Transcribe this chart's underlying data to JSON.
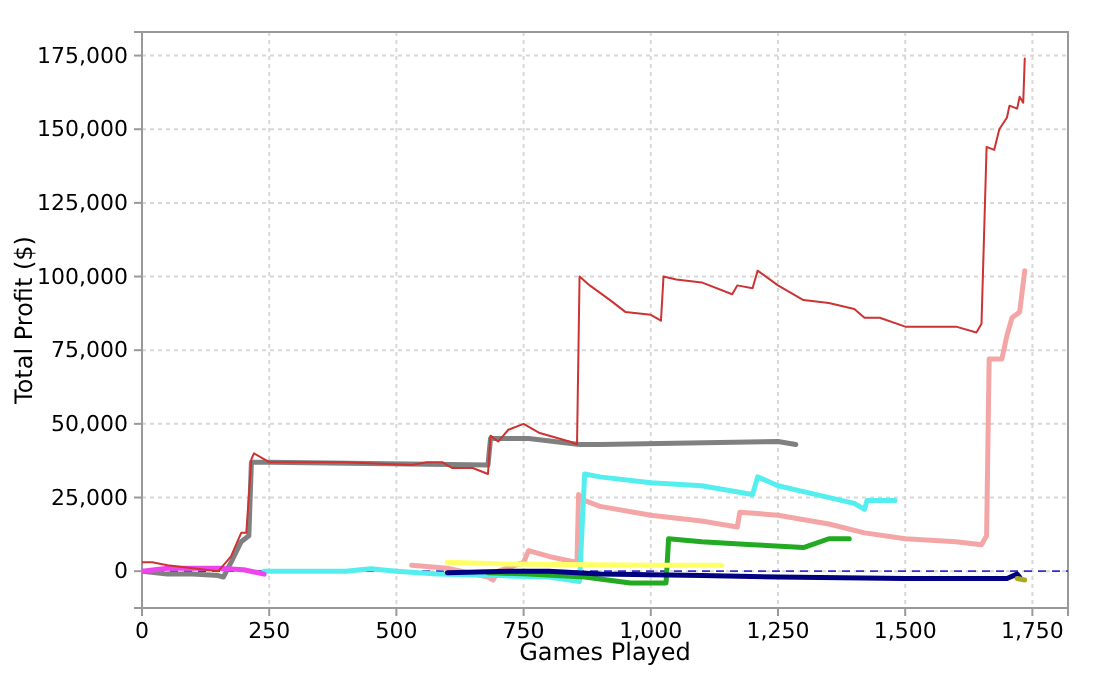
{
  "chart_data": {
    "type": "line",
    "xlabel": "Games Played",
    "ylabel": "Total Profit ($)",
    "xlim": [
      0,
      1820
    ],
    "xticks": [
      0,
      250,
      500,
      750,
      {
        "value": 1000,
        "label": "1,000"
      },
      {
        "value": 1250,
        "label": "1,250"
      },
      {
        "value": 1500,
        "label": "1,500"
      },
      {
        "value": 1750,
        "label": "1,750"
      }
    ],
    "ylim": [
      -12500,
      183000
    ],
    "yticks": [
      0,
      {
        "value": 25000,
        "label": "25,000"
      },
      {
        "value": 50000,
        "label": "50,000"
      },
      {
        "value": 75000,
        "label": "75,000"
      },
      {
        "value": 100000,
        "label": "100,000"
      },
      {
        "value": 125000,
        "label": "125,000"
      },
      {
        "value": 150000,
        "label": "150,000"
      },
      {
        "value": 175000,
        "label": "175,000"
      }
    ],
    "grid": true,
    "line_style": "solid",
    "marker": "none",
    "ref_lines": [
      {
        "axis": "y",
        "value": 0,
        "color": "#3333cc",
        "line_style": "dashed"
      }
    ],
    "series": [
      {
        "color": "#808080",
        "x": [
          0,
          50,
          100,
          150,
          160,
          175,
          195,
          210,
          215,
          250,
          680,
          685,
          760,
          860,
          900,
          1250,
          1285
        ],
        "values": [
          0,
          -1000,
          -1000,
          -1500,
          -2000,
          3000,
          10000,
          12000,
          37000,
          37000,
          36000,
          45000,
          45000,
          43000,
          43000,
          44000,
          43000
        ]
      },
      {
        "color": "#f4a6a6",
        "x": [
          530,
          600,
          680,
          690,
          700,
          750,
          760,
          800,
          855,
          858,
          870,
          900,
          1000,
          1100,
          1170,
          1175,
          1250,
          1350,
          1420,
          1500,
          1600,
          1650,
          1660,
          1665,
          1690,
          1700,
          1710,
          1725,
          1735
        ],
        "values": [
          2000,
          1000,
          -2000,
          -3000,
          0,
          3000,
          7000,
          5000,
          3000,
          26000,
          24000,
          22000,
          19000,
          17000,
          15000,
          20000,
          19000,
          16000,
          13000,
          11000,
          10000,
          9000,
          12000,
          72000,
          72000,
          80000,
          86000,
          88000,
          102000
        ]
      },
      {
        "color": "#55eeee",
        "x": [
          240,
          400,
          450,
          500,
          580,
          700,
          800,
          860,
          870,
          900,
          1000,
          1100,
          1200,
          1210,
          1250,
          1300,
          1400,
          1420,
          1425,
          1480
        ],
        "values": [
          0,
          0,
          800,
          0,
          -1000,
          -1500,
          -2000,
          -3500,
          33000,
          32000,
          30000,
          29000,
          26000,
          32000,
          29000,
          27000,
          23000,
          21000,
          24000,
          24000
        ]
      },
      {
        "color": "#22aa22",
        "x": [
          680,
          760,
          870,
          960,
          1030,
          1035,
          1100,
          1200,
          1300,
          1350,
          1390
        ],
        "values": [
          -500,
          -1000,
          -2000,
          -4000,
          -4000,
          11000,
          10000,
          9000,
          8000,
          11000,
          11000
        ]
      },
      {
        "color": "#ffff66",
        "x": [
          600,
          700,
          1000,
          1140
        ],
        "values": [
          3000,
          2500,
          2000,
          2000
        ]
      },
      {
        "color": "#ee44ee",
        "x": [
          0,
          50,
          150,
          200,
          240
        ],
        "values": [
          0,
          1000,
          1000,
          500,
          -1000
        ]
      },
      {
        "color": "#000080",
        "x": [
          600,
          720,
          800,
          900,
          1100,
          1250,
          1500,
          1700,
          1720,
          1725
        ],
        "values": [
          -500,
          0,
          0,
          -1000,
          -1500,
          -2000,
          -2500,
          -2500,
          -1000,
          -2000
        ]
      },
      {
        "color": "#aaaa22",
        "x": [
          1720,
          1735
        ],
        "values": [
          -2500,
          -3000
        ]
      },
      {
        "color": "#cc3333",
        "x": [
          0,
          20,
          50,
          100,
          150,
          175,
          195,
          205,
          215,
          220,
          250,
          400,
          530,
          560,
          590,
          610,
          650,
          680,
          685,
          700,
          720,
          750,
          780,
          840,
          855,
          860,
          880,
          920,
          950,
          1000,
          1020,
          1025,
          1050,
          1100,
          1160,
          1170,
          1200,
          1210,
          1250,
          1300,
          1350,
          1400,
          1420,
          1450,
          1500,
          1600,
          1640,
          1650,
          1660,
          1675,
          1685,
          1700,
          1705,
          1720,
          1725,
          1732,
          1735
        ],
        "values": [
          3000,
          3000,
          2000,
          1000,
          0,
          5000,
          13000,
          13000,
          38000,
          40000,
          37000,
          37000,
          36000,
          37000,
          37000,
          35000,
          35000,
          33000,
          46000,
          44000,
          48000,
          50000,
          47000,
          44000,
          43000,
          100000,
          97000,
          92000,
          88000,
          87000,
          85000,
          100000,
          99000,
          98000,
          94000,
          97000,
          96000,
          102000,
          97000,
          92000,
          91000,
          89000,
          86000,
          86000,
          83000,
          83000,
          81000,
          84000,
          144000,
          143000,
          150000,
          154000,
          158000,
          157000,
          161000,
          159000,
          174000
        ]
      }
    ]
  }
}
